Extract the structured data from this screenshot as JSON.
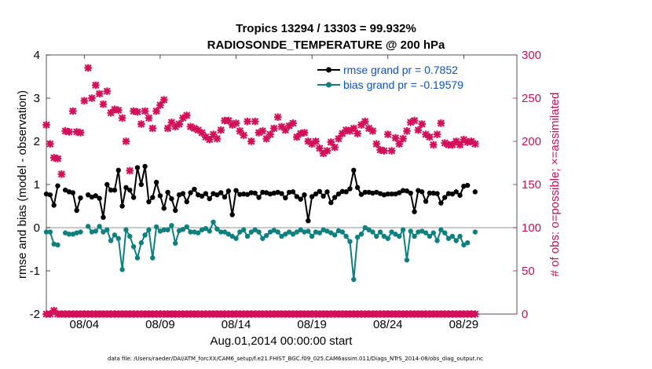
{
  "chart_data": {
    "type": "line",
    "title_line1": "Tropics 13294 / 13303 = 99.932%",
    "title_line2": "RADIOSONDE_TEMPERATURE @ 200 hPa",
    "ylabel_left": "rmse and bias (model - observation)",
    "ylabel_right": "# of obs: o=possible; ×=assimilated",
    "xlabel": "Aug.01,2014 00:00:00 start",
    "footer": "data file: /Users/raeder/DAI/ATM_forcXX/CAM6_setup/f.e21.FHIST_BGC.f09_025.CAM6assim.011/Diags_NTrS_2014-08/obs_diag_output.nc",
    "xlim": [
      1,
      32
    ],
    "ylim_left": [
      -2,
      4
    ],
    "ylim_right": [
      0,
      300
    ],
    "x_ticks": [
      3.5,
      8.5,
      13.5,
      18.5,
      23.5,
      28.5
    ],
    "x_tick_labels": [
      "08/04",
      "08/09",
      "08/14",
      "08/19",
      "08/24",
      "08/29"
    ],
    "y_ticks_left": [
      -2,
      -1,
      0,
      1,
      2,
      3,
      4
    ],
    "y_tick_labels_left": [
      "-2",
      "-1",
      "0",
      "1",
      "2",
      "3",
      "4"
    ],
    "y_ticks_right": [
      0,
      50,
      100,
      150,
      200,
      250,
      300
    ],
    "y_tick_labels_right": [
      "0",
      "50",
      "100",
      "150",
      "200",
      "250",
      "300"
    ],
    "x_start": 1.0,
    "x_step": 0.25,
    "colors": {
      "rmse": "#000000",
      "bias": "#0e8080",
      "obs": "#d40f5a",
      "right_axis": "#c80f5a",
      "legend_text": "#0a52c8",
      "zero_line": "#b8b8b8"
    },
    "series": [
      {
        "name": "rmse grand pr = 0.7852",
        "axis": "left",
        "color": "#000000",
        "values": [
          0.78,
          0.76,
          0.52,
          0.97,
          null,
          0.87,
          0.83,
          0.81,
          0.4,
          0.69,
          null,
          0.76,
          0.71,
          0.74,
          0.68,
          0.24,
          1.0,
          0.87,
          0.87,
          1.33,
          0.5,
          0.93,
          0.87,
          0.7,
          1.39,
          1.0,
          1.42,
          0.6,
          0.7,
          1.05,
          0.74,
          0.45,
          0.82,
          0.67,
          0.4,
          0.76,
          0.79,
          0.6,
          0.81,
          0.89,
          0.76,
          0.73,
          0.79,
          0.67,
          0.79,
          0.76,
          0.81,
          0.71,
          0.85,
          0.3,
          0.86,
          0.77,
          0.78,
          0.77,
          0.81,
          0.8,
          0.7,
          0.82,
          0.81,
          0.78,
          0.8,
          0.82,
          0.79,
          0.69,
          0.82,
          0.83,
          0.72,
          0.66,
          0.76,
          0.16,
          0.72,
          0.78,
          0.84,
          0.73,
          0.83,
          0.58,
          0.7,
          0.78,
          0.84,
          0.83,
          0.9,
          1.33,
          0.93,
          0.77,
          0.82,
          0.82,
          0.8,
          0.82,
          0.79,
          0.76,
          0.78,
          0.78,
          0.78,
          0.81,
          0.86,
          0.85,
          0.8,
          0.37,
          0.86,
          0.83,
          0.61,
          0.8,
          0.8,
          0.79,
          0.57,
          0.7,
          0.79,
          0.78,
          0.83,
          0.75,
          0.96,
          0.98,
          null,
          0.83
        ]
      },
      {
        "name": "bias grand pr = -0.19579",
        "axis": "left",
        "color": "#0e8080",
        "values": [
          -0.1,
          -0.1,
          -0.38,
          -0.4,
          null,
          -0.12,
          -0.15,
          -0.15,
          -0.12,
          -0.1,
          null,
          0.03,
          -0.1,
          -0.08,
          0.03,
          -0.1,
          -0.05,
          -0.3,
          -0.17,
          -0.25,
          -0.97,
          -0.05,
          -0.2,
          -0.44,
          -0.7,
          -0.35,
          -0.17,
          -0.05,
          -0.7,
          0.02,
          -0.08,
          -0.05,
          -0.05,
          0.05,
          -0.36,
          -0.07,
          -0.04,
          0.02,
          -0.1,
          -0.1,
          -0.12,
          -0.05,
          -0.02,
          -0.08,
          0.13,
          -0.03,
          -0.1,
          -0.1,
          -0.15,
          -0.2,
          -0.25,
          -0.1,
          -0.05,
          -0.2,
          -0.1,
          -0.05,
          -0.1,
          -0.25,
          -0.18,
          -0.1,
          -0.06,
          -0.1,
          -0.2,
          -0.15,
          -0.1,
          -0.15,
          -0.1,
          -0.05,
          -0.1,
          -0.08,
          -0.2,
          -0.1,
          -0.12,
          -0.05,
          -0.08,
          -0.12,
          -0.17,
          -0.07,
          -0.1,
          -0.2,
          -0.32,
          -1.2,
          -0.22,
          -0.15,
          0.0,
          -0.05,
          -0.1,
          -0.2,
          -0.1,
          -0.2,
          -0.25,
          -0.1,
          -0.15,
          -0.2,
          -0.05,
          -0.75,
          -0.08,
          -0.2,
          -0.1,
          -0.08,
          -0.12,
          -0.2,
          -0.12,
          -0.3,
          -0.05,
          -0.12,
          -0.25,
          -0.2,
          -0.3,
          -0.2,
          -0.4,
          -0.35,
          null,
          -0.1
        ]
      },
      {
        "name": "obs possible",
        "axis": "right",
        "color": "#d40f5a",
        "marker": "x",
        "values": [
          219,
          197,
          181,
          180,
          162,
          212,
          211,
          235,
          211,
          210,
          247,
          285,
          250,
          265,
          255,
          243,
          258,
          233,
          237,
          236,
          227,
          200,
          166,
          235,
          234,
          220,
          235,
          227,
          215,
          235,
          242,
          248,
          215,
          222,
          217,
          220,
          227,
          230,
          217,
          215,
          213,
          210,
          205,
          202,
          208,
          203,
          213,
          224,
          224,
          219,
          221,
          212,
          207,
          223,
          200,
          223,
          210,
          212,
          203,
          208,
          215,
          228,
          217,
          213,
          218,
          221,
          205,
          209,
          210,
          200,
          197,
          200,
          192,
          186,
          189,
          199,
          193,
          203,
          209,
          213,
          212,
          215,
          209,
          219,
          223,
          215,
          212,
          197,
          190,
          189,
          208,
          189,
          204,
          197,
          203,
          212,
          222,
          224,
          213,
          220,
          208,
          205,
          196,
          208,
          221,
          198,
          196,
          196,
          200,
          196,
          202,
          199,
          200,
          197
        ]
      },
      {
        "name": "obs assimilated",
        "axis": "right",
        "color": "#d40f5a",
        "marker": "x",
        "values": [
          0,
          0,
          4,
          0,
          0,
          0,
          0,
          0,
          0,
          0,
          0,
          0,
          0,
          0,
          0,
          0,
          0,
          0,
          0,
          0,
          0,
          0,
          0,
          0,
          0,
          0,
          0,
          0,
          0,
          0,
          0,
          0,
          0,
          0,
          0,
          0,
          0,
          0,
          0,
          0,
          0,
          0,
          0,
          0,
          0,
          0,
          0,
          0,
          0,
          0,
          0,
          0,
          0,
          0,
          0,
          0,
          0,
          0,
          0,
          0,
          0,
          0,
          0,
          0,
          0,
          0,
          0,
          0,
          0,
          0,
          0,
          0,
          0,
          0,
          0,
          0,
          0,
          0,
          0,
          0,
          0,
          0,
          0,
          0,
          0,
          0,
          0,
          0,
          0,
          0,
          0,
          0,
          0,
          0,
          0,
          0,
          0,
          0,
          0,
          0,
          0,
          0,
          0,
          0,
          0,
          0,
          0,
          0,
          0,
          0,
          0,
          0,
          0,
          0
        ]
      }
    ],
    "legend": [
      {
        "label": "rmse grand pr = 0.7852",
        "color": "#000000"
      },
      {
        "label": "bias grand pr = -0.19579",
        "color": "#0e8080"
      }
    ],
    "legend_position": "top-right",
    "grid": false
  }
}
